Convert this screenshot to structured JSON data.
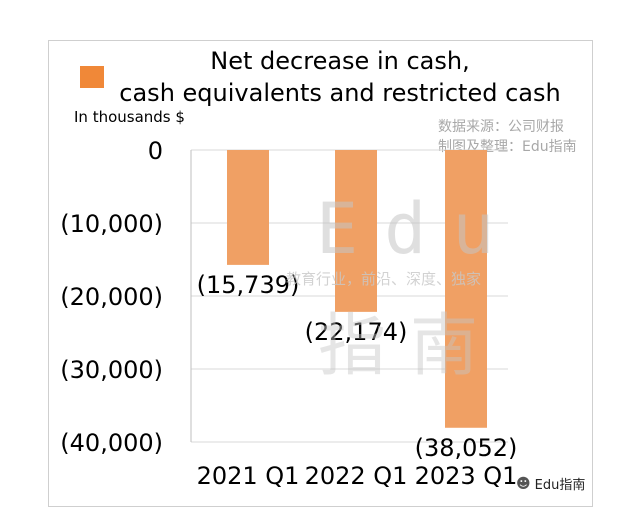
{
  "chart_data": {
    "type": "bar",
    "title_line1": "Net decrease in cash,",
    "title_line2": "cash equivalents and restricted cash",
    "ylabel": "In thousands $",
    "categories": [
      "2021 Q1",
      "2022 Q1",
      "2023 Q1"
    ],
    "series": [
      {
        "values": [
          -15739,
          -22174,
          -38052
        ]
      }
    ],
    "data_labels": [
      "(15,739)",
      "(22,174)",
      "(38,052)"
    ],
    "yticks": [
      0,
      -10000,
      -20000,
      -30000,
      -40000
    ],
    "ytick_labels": [
      "0",
      "(10,000)",
      "(20,000)",
      "(30,000)",
      "(40,000)"
    ],
    "ylim": [
      -40000,
      0
    ],
    "grid": true,
    "legend": "top-left"
  },
  "colors": {
    "bar": "#f0a064",
    "legend_swatch": "#f08838",
    "grid": "#d9d9d9"
  },
  "watermark": {
    "source_line1": "数据来源：公司财报",
    "source_line2": "制图及整理：Edu指南",
    "big_text": "Edu",
    "slogan": "教育行业，前沿、深度、独家",
    "big_han": "指南"
  },
  "brand": {
    "icon": "wechat-icon",
    "label": "Edu指南"
  }
}
